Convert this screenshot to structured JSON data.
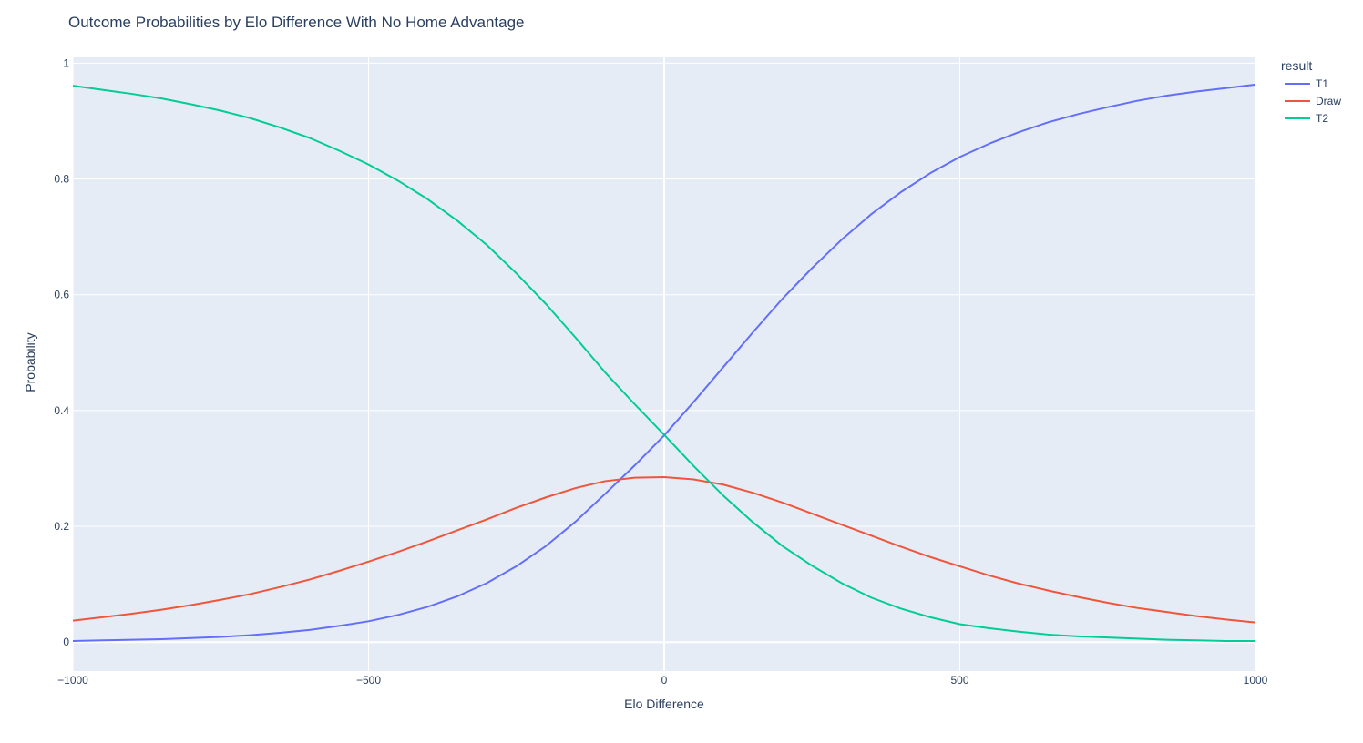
{
  "chart_data": {
    "type": "line",
    "title": "Outcome Probabilities by Elo Difference With No Home Advantage",
    "xlabel": "Elo Difference",
    "ylabel": "Probability",
    "xlim": [
      -1000,
      1000
    ],
    "ylim": [
      -0.05,
      1.01
    ],
    "xticks": [
      -1000,
      -500,
      0,
      500,
      1000
    ],
    "xtick_labels": [
      "−1000",
      "−500",
      "0",
      "500",
      "1000"
    ],
    "yticks": [
      0,
      0.2,
      0.4,
      0.6,
      0.8,
      1
    ],
    "ytick_labels": [
      "0",
      "0.2",
      "0.4",
      "0.6",
      "0.8",
      "1"
    ],
    "grid": true,
    "legend_title": "result",
    "legend_position": "top-right",
    "x": [
      -1000,
      -950,
      -900,
      -850,
      -800,
      -750,
      -700,
      -650,
      -600,
      -550,
      -500,
      -450,
      -400,
      -350,
      -300,
      -250,
      -200,
      -150,
      -100,
      -50,
      0,
      50,
      100,
      150,
      200,
      250,
      300,
      350,
      400,
      450,
      500,
      550,
      600,
      650,
      700,
      750,
      800,
      850,
      900,
      950,
      1000
    ],
    "series": [
      {
        "name": "T1",
        "color": "#636efa",
        "values": [
          0.002,
          0.003,
          0.004,
          0.005,
          0.007,
          0.009,
          0.012,
          0.016,
          0.021,
          0.028,
          0.036,
          0.047,
          0.061,
          0.079,
          0.102,
          0.131,
          0.166,
          0.208,
          0.256,
          0.305,
          0.357,
          0.415,
          0.475,
          0.535,
          0.593,
          0.646,
          0.695,
          0.739,
          0.777,
          0.81,
          0.838,
          0.861,
          0.881,
          0.898,
          0.912,
          0.924,
          0.935,
          0.944,
          0.951,
          0.957,
          0.963
        ]
      },
      {
        "name": "Draw",
        "color": "#ef553b",
        "values": [
          0.037,
          0.043,
          0.049,
          0.056,
          0.064,
          0.073,
          0.083,
          0.095,
          0.108,
          0.123,
          0.139,
          0.156,
          0.174,
          0.193,
          0.212,
          0.232,
          0.25,
          0.266,
          0.278,
          0.284,
          0.285,
          0.281,
          0.272,
          0.258,
          0.241,
          0.222,
          0.203,
          0.184,
          0.165,
          0.147,
          0.131,
          0.115,
          0.101,
          0.089,
          0.078,
          0.068,
          0.059,
          0.052,
          0.045,
          0.039,
          0.034
        ]
      },
      {
        "name": "T2",
        "color": "#00cc96",
        "values": [
          0.961,
          0.954,
          0.947,
          0.939,
          0.929,
          0.918,
          0.905,
          0.889,
          0.871,
          0.849,
          0.825,
          0.797,
          0.765,
          0.728,
          0.686,
          0.637,
          0.584,
          0.526,
          0.466,
          0.411,
          0.358,
          0.304,
          0.253,
          0.207,
          0.166,
          0.132,
          0.102,
          0.077,
          0.058,
          0.043,
          0.031,
          0.024,
          0.018,
          0.013,
          0.01,
          0.008,
          0.006,
          0.004,
          0.003,
          0.002,
          0.002
        ]
      }
    ]
  }
}
